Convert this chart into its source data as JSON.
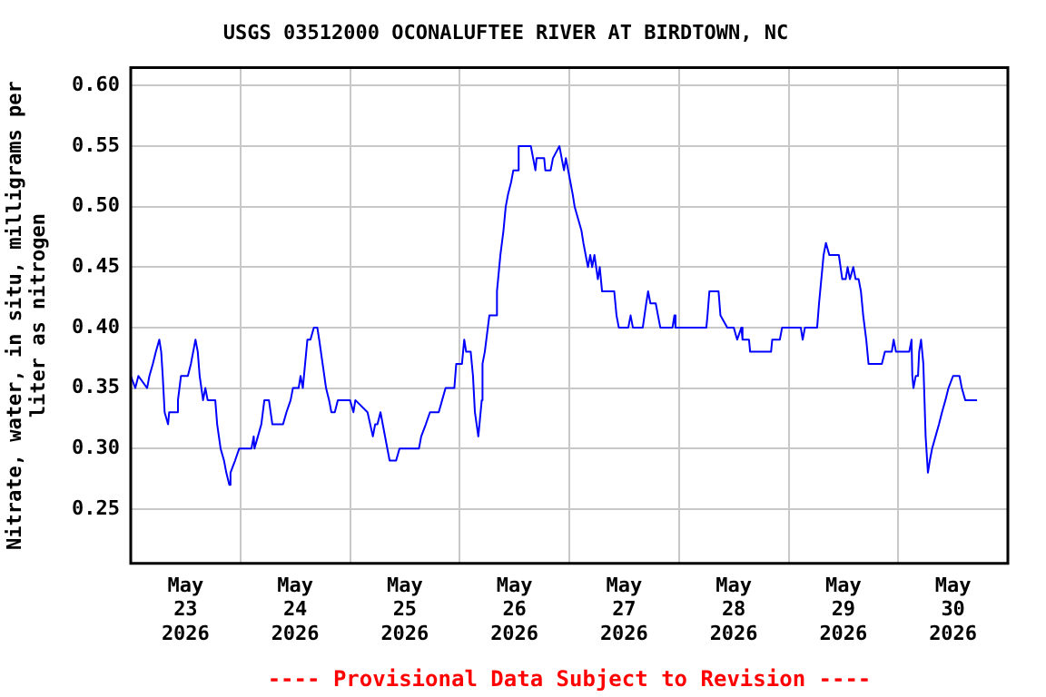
{
  "chart_data": {
    "type": "line",
    "title": "USGS 03512000 OCONALUFTEE RIVER AT BIRDTOWN, NC",
    "ylabel": "Nitrate, water, in situ, milligrams per\nliter as nitrogen",
    "annotations": [
      "---- Provisional Data Subject to Revision ----"
    ],
    "x": [
      "2026-05-23T00:00",
      "2026-05-23T01:00",
      "2026-05-23T01:40",
      "2026-05-23T03:35",
      "2026-05-23T04:05",
      "2026-05-23T04:50",
      "2026-05-23T05:30",
      "2026-05-23T06:15",
      "2026-05-23T06:40",
      "2026-05-23T07:00",
      "2026-05-23T07:25",
      "2026-05-23T08:10",
      "2026-05-23T08:25",
      "2026-05-23T10:05",
      "2026-05-23T10:20",
      "2026-05-23T11:00",
      "2026-05-23T12:30",
      "2026-05-23T13:10",
      "2026-05-23T13:40",
      "2026-05-23T14:10",
      "2026-05-23T14:40",
      "2026-05-23T15:05",
      "2026-05-23T15:50",
      "2026-05-23T16:20",
      "2026-05-23T16:50",
      "2026-05-23T18:30",
      "2026-05-23T18:55",
      "2026-05-23T19:40",
      "2026-05-23T20:25",
      "2026-05-23T20:55",
      "2026-05-23T21:35",
      "2026-05-23T21:50",
      "2026-05-23T22:50",
      "2026-05-23T23:45",
      "2026-05-24T02:25",
      "2026-05-24T02:55",
      "2026-05-24T03:05",
      "2026-05-24T03:50",
      "2026-05-24T04:35",
      "2026-05-24T05:15",
      "2026-05-24T06:15",
      "2026-05-24T07:00",
      "2026-05-24T07:10",
      "2026-05-24T09:20",
      "2026-05-24T10:05",
      "2026-05-24T11:00",
      "2026-05-24T11:30",
      "2026-05-24T12:45",
      "2026-05-24T13:10",
      "2026-05-24T13:40",
      "2026-05-24T14:10",
      "2026-05-24T14:40",
      "2026-05-24T15:20",
      "2026-05-24T16:05",
      "2026-05-24T16:50",
      "2026-05-24T17:15",
      "2026-05-24T18:00",
      "2026-05-24T18:45",
      "2026-05-24T19:25",
      "2026-05-24T19:55",
      "2026-05-24T20:40",
      "2026-05-24T21:20",
      "2026-05-25T00:00",
      "2026-05-25T00:45",
      "2026-05-25T01:10",
      "2026-05-25T03:50",
      "2026-05-25T05:00",
      "2026-05-25T05:30",
      "2026-05-25T06:00",
      "2026-05-25T06:40",
      "2026-05-25T08:10",
      "2026-05-25T08:40",
      "2026-05-25T10:05",
      "2026-05-25T10:50",
      "2026-05-25T13:10",
      "2026-05-25T15:05",
      "2026-05-25T15:35",
      "2026-05-25T16:35",
      "2026-05-25T17:30",
      "2026-05-25T19:25",
      "2026-05-25T20:10",
      "2026-05-25T20:55",
      "2026-05-25T22:50",
      "2026-05-25T23:15",
      "2026-05-26T00:30",
      "2026-05-26T01:00",
      "2026-05-26T01:25",
      "2026-05-26T02:25",
      "2026-05-26T02:55",
      "2026-05-26T03:20",
      "2026-05-26T04:05",
      "2026-05-26T04:50",
      "2026-05-26T05:00",
      "2026-05-26T05:30",
      "2026-05-26T06:30",
      "2026-05-26T07:55",
      "2026-05-26T08:10",
      "2026-05-26T08:55",
      "2026-05-26T09:35",
      "2026-05-26T10:05",
      "2026-05-26T10:35",
      "2026-05-26T11:15",
      "2026-05-26T11:45",
      "2026-05-26T12:45",
      "2026-05-26T12:55",
      "2026-05-26T15:35",
      "2026-05-26T16:05",
      "2026-05-26T16:35",
      "2026-05-26T16:50",
      "2026-05-26T18:30",
      "2026-05-26T18:45",
      "2026-05-26T19:55",
      "2026-05-26T20:25",
      "2026-05-26T21:50",
      "2026-05-26T22:20",
      "2026-05-26T22:50",
      "2026-05-26T23:15",
      "2026-05-26T23:45",
      "2026-05-27T00:15",
      "2026-05-27T00:45",
      "2026-05-27T01:10",
      "2026-05-27T01:55",
      "2026-05-27T02:40",
      "2026-05-27T03:05",
      "2026-05-27T03:35",
      "2026-05-27T04:05",
      "2026-05-27T04:35",
      "2026-05-27T05:00",
      "2026-05-27T05:30",
      "2026-05-27T06:15",
      "2026-05-27T06:40",
      "2026-05-27T07:10",
      "2026-05-27T09:50",
      "2026-05-27T10:20",
      "2026-05-27T10:50",
      "2026-05-27T12:55",
      "2026-05-27T13:25",
      "2026-05-27T13:55",
      "2026-05-27T16:05",
      "2026-05-27T16:50",
      "2026-05-27T17:15",
      "2026-05-27T17:45",
      "2026-05-27T18:55",
      "2026-05-27T19:25",
      "2026-05-27T19:55",
      "2026-05-27T22:35",
      "2026-05-27T23:00",
      "2026-05-27T23:15",
      "2026-05-28T06:00",
      "2026-05-28T06:15",
      "2026-05-28T06:40",
      "2026-05-28T08:40",
      "2026-05-28T09:05",
      "2026-05-28T10:35",
      "2026-05-28T12:00",
      "2026-05-28T12:45",
      "2026-05-28T13:40",
      "2026-05-28T13:55",
      "2026-05-28T15:20",
      "2026-05-28T15:35",
      "2026-05-28T20:10",
      "2026-05-28T20:25",
      "2026-05-28T22:05",
      "2026-05-28T22:35",
      "2026-05-29T02:40",
      "2026-05-29T03:05",
      "2026-05-29T03:35",
      "2026-05-29T06:15",
      "2026-05-29T06:40",
      "2026-05-29T07:10",
      "2026-05-29T07:40",
      "2026-05-29T08:10",
      "2026-05-29T08:55",
      "2026-05-29T11:00",
      "2026-05-29T11:45",
      "2026-05-29T12:30",
      "2026-05-29T12:55",
      "2026-05-29T13:25",
      "2026-05-29T14:10",
      "2026-05-29T14:40",
      "2026-05-29T15:20",
      "2026-05-29T15:50",
      "2026-05-29T16:20",
      "2026-05-29T17:00",
      "2026-05-29T17:30",
      "2026-05-29T20:25",
      "2026-05-29T21:05",
      "2026-05-29T22:35",
      "2026-05-29T23:00",
      "2026-05-29T23:30",
      "2026-05-30T02:25",
      "2026-05-30T02:55",
      "2026-05-30T03:05",
      "2026-05-30T03:20",
      "2026-05-30T03:50",
      "2026-05-30T04:20",
      "2026-05-30T04:35",
      "2026-05-30T05:00",
      "2026-05-30T05:30",
      "2026-05-30T06:00",
      "2026-05-30T06:30",
      "2026-05-30T06:55",
      "2026-05-30T07:25",
      "2026-05-30T08:10",
      "2026-05-30T08:55",
      "2026-05-30T09:35",
      "2026-05-30T10:20",
      "2026-05-30T11:00",
      "2026-05-30T12:00",
      "2026-05-30T13:25",
      "2026-05-30T13:55",
      "2026-05-30T14:40",
      "2026-05-30T17:15"
    ],
    "series": [
      {
        "color": "#0000ff",
        "values": [
          0.36,
          0.35,
          0.36,
          0.35,
          0.36,
          0.37,
          0.38,
          0.39,
          0.38,
          0.36,
          0.33,
          0.32,
          0.33,
          0.33,
          0.34,
          0.36,
          0.36,
          0.37,
          0.38,
          0.39,
          0.38,
          0.36,
          0.34,
          0.35,
          0.34,
          0.34,
          0.32,
          0.3,
          0.29,
          0.28,
          0.27,
          0.28,
          0.29,
          0.3,
          0.3,
          0.31,
          0.3,
          0.31,
          0.32,
          0.34,
          0.34,
          0.32,
          0.32,
          0.32,
          0.33,
          0.34,
          0.35,
          0.35,
          0.36,
          0.35,
          0.37,
          0.39,
          0.39,
          0.4,
          0.4,
          0.39,
          0.37,
          0.35,
          0.34,
          0.33,
          0.33,
          0.34,
          0.34,
          0.33,
          0.34,
          0.33,
          0.31,
          0.32,
          0.32,
          0.33,
          0.3,
          0.29,
          0.29,
          0.3,
          0.3,
          0.3,
          0.31,
          0.32,
          0.33,
          0.33,
          0.34,
          0.35,
          0.35,
          0.37,
          0.37,
          0.39,
          0.38,
          0.38,
          0.36,
          0.33,
          0.31,
          0.34,
          0.37,
          0.38,
          0.41,
          0.41,
          0.43,
          0.46,
          0.48,
          0.5,
          0.51,
          0.52,
          0.53,
          0.53,
          0.55,
          0.55,
          0.54,
          0.53,
          0.54,
          0.54,
          0.53,
          0.53,
          0.54,
          0.55,
          0.54,
          0.53,
          0.54,
          0.53,
          0.52,
          0.51,
          0.5,
          0.49,
          0.48,
          0.47,
          0.46,
          0.45,
          0.46,
          0.45,
          0.46,
          0.44,
          0.45,
          0.43,
          0.43,
          0.41,
          0.4,
          0.4,
          0.41,
          0.4,
          0.4,
          0.42,
          0.43,
          0.42,
          0.42,
          0.41,
          0.4,
          0.4,
          0.41,
          0.4,
          0.4,
          0.41,
          0.43,
          0.43,
          0.41,
          0.4,
          0.4,
          0.39,
          0.4,
          0.39,
          0.39,
          0.38,
          0.38,
          0.39,
          0.39,
          0.4,
          0.4,
          0.39,
          0.4,
          0.4,
          0.42,
          0.44,
          0.46,
          0.47,
          0.46,
          0.46,
          0.44,
          0.44,
          0.45,
          0.44,
          0.45,
          0.44,
          0.44,
          0.43,
          0.41,
          0.39,
          0.37,
          0.37,
          0.38,
          0.38,
          0.39,
          0.38,
          0.38,
          0.39,
          0.36,
          0.35,
          0.36,
          0.36,
          0.38,
          0.39,
          0.37,
          0.31,
          0.28,
          0.29,
          0.3,
          0.31,
          0.32,
          0.33,
          0.34,
          0.35,
          0.36,
          0.36,
          0.35,
          0.34,
          0.34
        ]
      }
    ],
    "xlim": [
      "2026-05-23",
      "2026-05-31"
    ],
    "xticks": [
      {
        "value": "2026-05-23T12:00",
        "label": "May\n23\n2026"
      },
      {
        "value": "2026-05-24",
        "label": null
      },
      {
        "value": "2026-05-24T12:00",
        "label": "May\n24\n2026"
      },
      {
        "value": "2026-05-25",
        "label": null
      },
      {
        "value": "2026-05-25T12:00",
        "label": "May\n25\n2026"
      },
      {
        "value": "2026-05-26",
        "label": null
      },
      {
        "value": "2026-05-26T12:00",
        "label": "May\n26\n2026"
      },
      {
        "value": "2026-05-27",
        "label": null
      },
      {
        "value": "2026-05-27T12:00",
        "label": "May\n27\n2026"
      },
      {
        "value": "2026-05-28",
        "label": null
      },
      {
        "value": "2026-05-28T12:00",
        "label": "May\n28\n2026"
      },
      {
        "value": "2026-05-29",
        "label": null
      },
      {
        "value": "2026-05-29T12:00",
        "label": "May\n29\n2026"
      },
      {
        "value": "2026-05-30",
        "label": null
      },
      {
        "value": "2026-05-30T12:00",
        "label": "May\n30\n2026"
      }
    ],
    "ylim": [
      0.205,
      0.615
    ],
    "yticks": [
      {
        "value": 0.25,
        "label": "0.25"
      },
      {
        "value": 0.3,
        "label": "0.30"
      },
      {
        "value": 0.35,
        "label": "0.35"
      },
      {
        "value": 0.4,
        "label": "0.40"
      },
      {
        "value": 0.45,
        "label": "0.45"
      },
      {
        "value": 0.5,
        "label": "0.50"
      },
      {
        "value": 0.55,
        "label": "0.55"
      },
      {
        "value": 0.6,
        "label": "0.60"
      }
    ],
    "grid": true,
    "legend": false,
    "marker": "none",
    "line_style": "solid"
  }
}
